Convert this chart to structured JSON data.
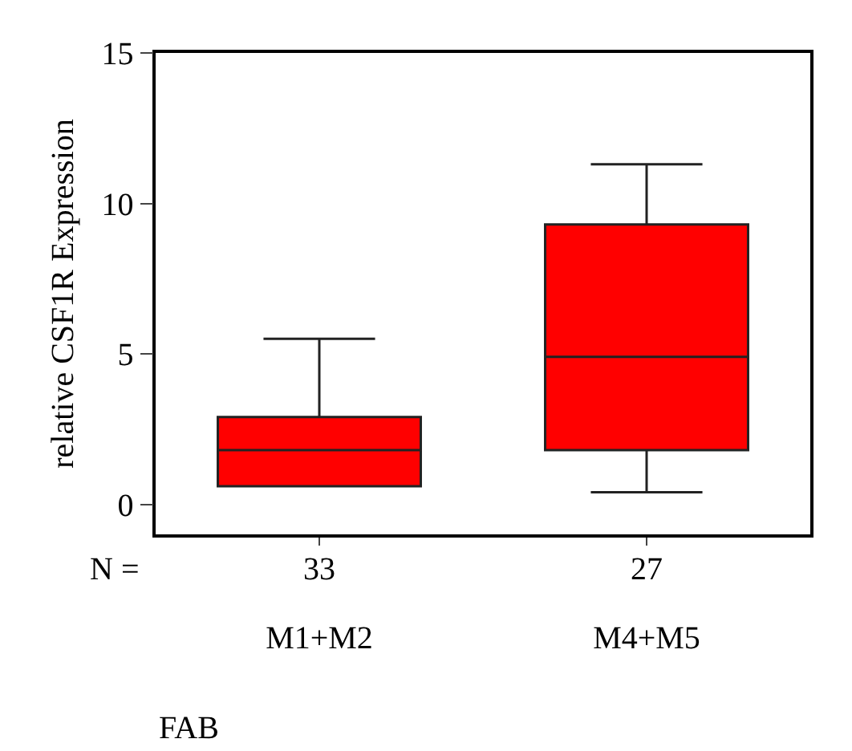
{
  "chart_data": {
    "type": "box",
    "ylabel": "relative CSF1R Expression",
    "xlabel": "FAB",
    "categories": [
      "M1+M2",
      "M4+M5"
    ],
    "color": "#ff0000",
    "boxes": [
      {
        "low": 0.6,
        "q1": 0.6,
        "median": 1.8,
        "q3": 2.9,
        "high": 5.5
      },
      {
        "low": 0.4,
        "q1": 1.8,
        "median": 4.9,
        "q3": 9.3,
        "high": 11.3
      }
    ],
    "ylim": [
      -1,
      15
    ],
    "yticks": [
      0,
      5,
      10,
      15
    ],
    "grid": false,
    "annotations": [
      "N =",
      "33",
      "27"
    ]
  }
}
